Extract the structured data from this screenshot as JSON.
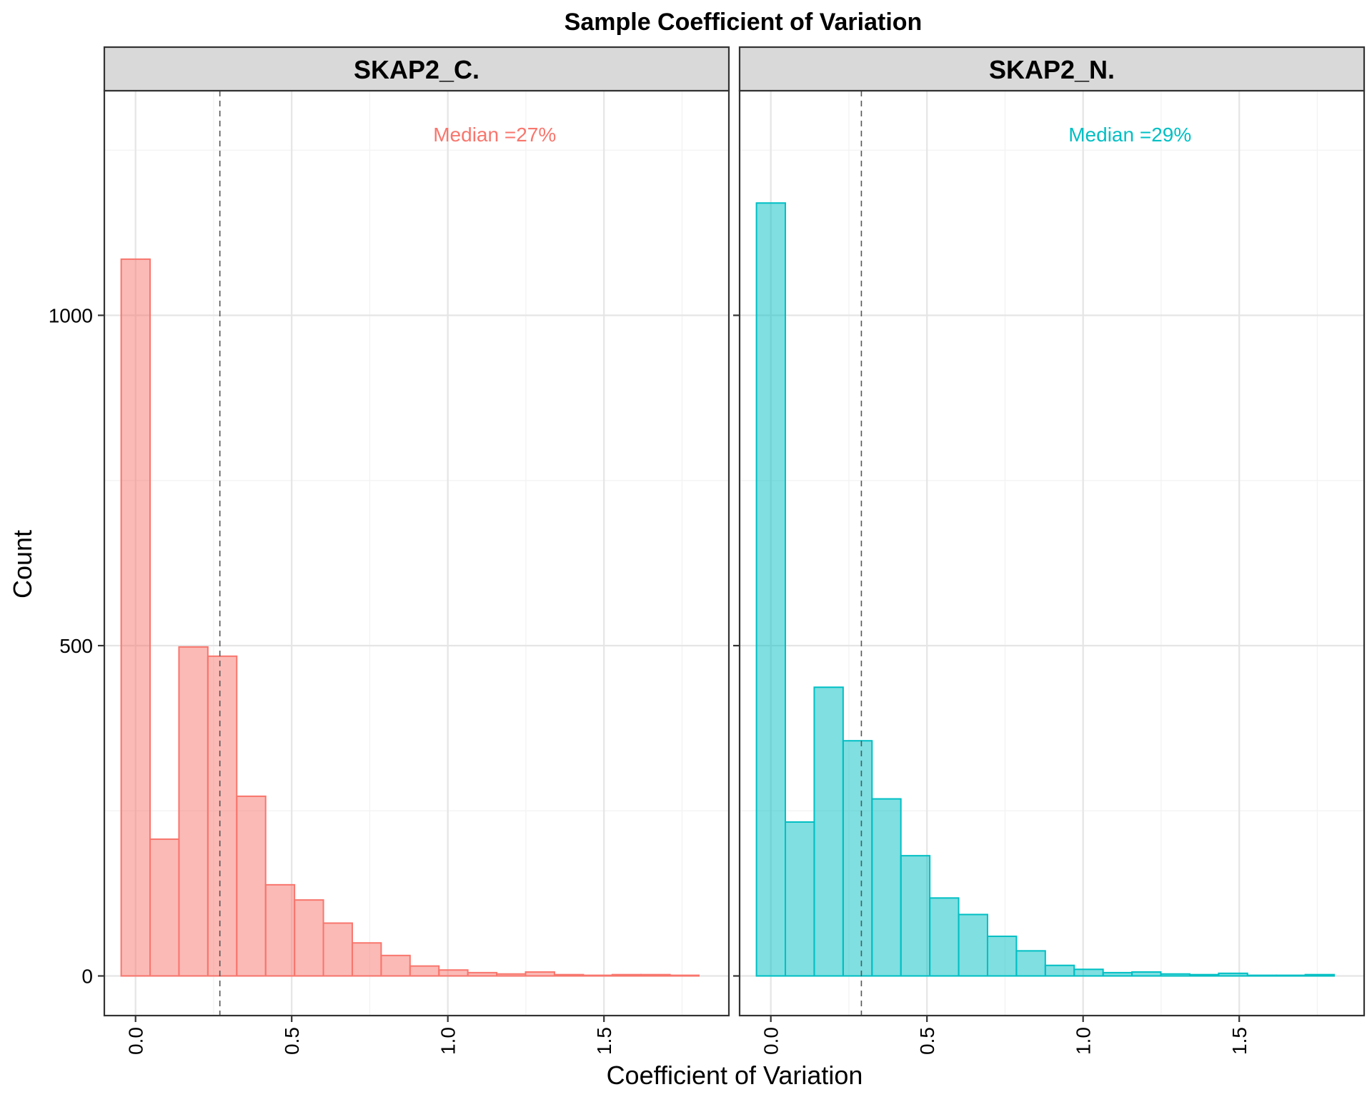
{
  "chart_data": {
    "type": "bar",
    "title": "Sample Coefficient of Variation",
    "xlabel": "Coefficient of Variation",
    "ylabel": "Count",
    "xlim": [
      -0.1,
      1.9
    ],
    "ylim": [
      -60,
      1340
    ],
    "x_ticks": [
      0.0,
      0.5,
      1.0,
      1.5
    ],
    "x_tick_labels": [
      "0.0",
      "0.5",
      "1.0",
      "1.5"
    ],
    "y_ticks": [
      0,
      500,
      1000
    ],
    "y_tick_labels": [
      "0",
      "500",
      "1000"
    ],
    "grid": true,
    "bin_width": 0.0925,
    "bin_start": -0.046,
    "panels": [
      {
        "name": "SKAP2_C.",
        "median_label": "Median =27%",
        "median": 0.27,
        "fill": "#F8766D",
        "counts": [
          1085,
          207,
          498,
          484,
          272,
          138,
          115,
          80,
          50,
          31,
          15,
          9,
          5,
          3,
          6,
          2,
          1,
          2,
          2,
          1
        ]
      },
      {
        "name": "SKAP2_N.",
        "median_label": "Median =29%",
        "median": 0.29,
        "fill": "#00BFC4",
        "counts": [
          1170,
          233,
          437,
          356,
          268,
          182,
          118,
          93,
          60,
          38,
          16,
          10,
          5,
          6,
          3,
          2,
          4,
          1,
          1,
          2
        ]
      }
    ]
  }
}
